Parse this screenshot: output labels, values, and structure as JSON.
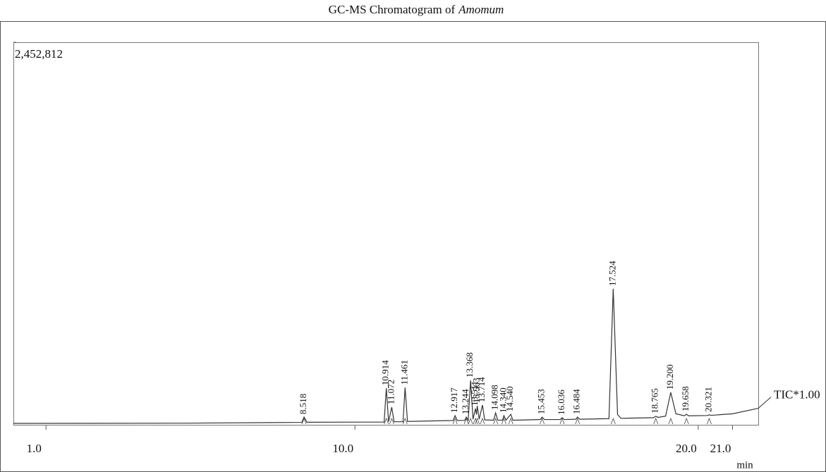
{
  "chart_data": {
    "type": "line",
    "title": "GC-MS Chromatogram of",
    "title_species": "Amomum",
    "x_label": "min",
    "xlim": [
      0.05,
      21.75
    ],
    "ylim": [
      0,
      2452812
    ],
    "xticks": [
      {
        "value": 1,
        "label": "1.0"
      },
      {
        "value": 10,
        "label": "10.0"
      },
      {
        "value": 20,
        "label": "20.0"
      },
      {
        "value": 21,
        "label": "21.0"
      }
    ],
    "yticks": [
      {
        "value": 2452812,
        "label": "2,452,812"
      }
    ],
    "series": [
      {
        "name": "TIC*1.00",
        "color": "#333333",
        "x": [
          0.05,
          5.0,
          8.45,
          8.518,
          8.6,
          10.85,
          10.914,
          10.98,
          11.072,
          11.14,
          11.4,
          11.461,
          11.53,
          12.86,
          12.917,
          12.98,
          13.2,
          13.244,
          13.3,
          13.368,
          13.44,
          13.511,
          13.54,
          13.563,
          13.62,
          13.714,
          13.78,
          14.04,
          14.098,
          14.16,
          14.3,
          14.34,
          14.4,
          14.54,
          14.6,
          15.4,
          15.453,
          15.52,
          15.98,
          16.036,
          16.1,
          16.43,
          16.484,
          16.55,
          17.4,
          17.524,
          17.65,
          17.75,
          18.7,
          18.765,
          18.83,
          19.05,
          19.2,
          19.35,
          19.6,
          19.658,
          19.72,
          20.26,
          20.321,
          20.38,
          21.0,
          21.75
        ],
        "values": [
          13500,
          15000,
          20000,
          54000,
          21000,
          22000,
          239000,
          24000,
          117000,
          24000,
          24000,
          243000,
          26000,
          32000,
          63000,
          32000,
          33000,
          54000,
          33000,
          289000,
          40000,
          108000,
          70000,
          126000,
          40000,
          131000,
          36000,
          34000,
          81000,
          34000,
          34000,
          63000,
          34000,
          72000,
          34000,
          38000,
          54000,
          38000,
          38000,
          50000,
          38000,
          40000,
          54000,
          40000,
          44000,
          875000,
          70000,
          46000,
          50000,
          59000,
          52000,
          60000,
          212000,
          75000,
          62000,
          72000,
          62000,
          64000,
          68000,
          65000,
          75000,
          110000
        ]
      }
    ],
    "peaks": [
      {
        "x": 8.518,
        "height": 54000
      },
      {
        "x": 10.914,
        "height": 239000
      },
      {
        "x": 11.072,
        "height": 117000
      },
      {
        "x": 11.461,
        "height": 243000
      },
      {
        "x": 12.917,
        "height": 63000
      },
      {
        "x": 13.244,
        "height": 54000
      },
      {
        "x": 13.368,
        "height": 289000
      },
      {
        "x": 13.511,
        "height": 108000
      },
      {
        "x": 13.563,
        "height": 126000
      },
      {
        "x": 13.714,
        "height": 131000
      },
      {
        "x": 14.098,
        "height": 81000
      },
      {
        "x": 14.34,
        "label": "14.340",
        "height": 63000
      },
      {
        "x": 14.54,
        "label": "14.540",
        "height": 72000
      },
      {
        "x": 15.453,
        "height": 54000
      },
      {
        "x": 16.036,
        "height": 50000
      },
      {
        "x": 16.484,
        "height": 54000
      },
      {
        "x": 17.524,
        "height": 875000
      },
      {
        "x": 18.765,
        "height": 59000
      },
      {
        "x": 19.2,
        "label": "19.200",
        "height": 212000
      },
      {
        "x": 19.658,
        "height": 72000
      },
      {
        "x": 20.321,
        "height": 68000
      }
    ]
  }
}
